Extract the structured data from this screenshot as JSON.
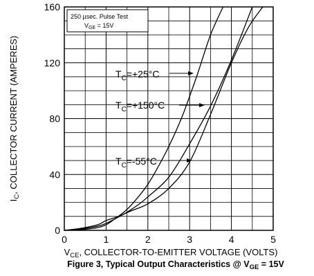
{
  "chart_data": {
    "type": "line",
    "title": "Figure 3, Typical Output Characteristics @ V",
    "title_subscript": "GE",
    "title_suffix": " = 15V",
    "xlabel": "V",
    "xlabel_subscript": "CE",
    "xlabel_suffix": ", COLLECTOR-TO-EMITTER VOLTAGE (VOLTS)",
    "ylabel": "I",
    "ylabel_subscript": "C",
    "ylabel_suffix": ", COLLECTOR CURRENT (AMPERES)",
    "xlim": [
      0,
      5
    ],
    "ylim": [
      0,
      160
    ],
    "x_ticks": [
      "0",
      "1",
      "2",
      "3",
      "4",
      "5"
    ],
    "y_ticks": [
      "0",
      "40",
      "80",
      "120",
      "160"
    ],
    "x_ticks_values": [
      0,
      1,
      2,
      3,
      4,
      5
    ],
    "y_ticks_values": [
      0,
      40,
      80,
      120,
      160
    ],
    "grid": true,
    "inset_box": {
      "line1": "250 µsec. Pulse Test",
      "line2_prefix": "V",
      "line2_subscript": "GE",
      "line2_suffix": " = 15V"
    },
    "series": [
      {
        "name": "T_C=+25°C",
        "x": [
          0,
          0.4,
          0.8,
          1.0,
          1.2,
          1.5,
          1.8,
          2.0,
          2.2,
          2.5,
          2.8,
          3.0,
          3.2,
          3.5,
          3.8
        ],
        "y": [
          0,
          0.5,
          2,
          4,
          8,
          15,
          25,
          33,
          43,
          60,
          80,
          96,
          113,
          140,
          160
        ]
      },
      {
        "name": "T_C=+150°C",
        "x": [
          0,
          0.4,
          0.8,
          1.0,
          1.2,
          1.5,
          1.8,
          2.0,
          2.5,
          3.0,
          3.5,
          4.0,
          4.5
        ],
        "y": [
          0,
          1,
          3,
          5,
          8,
          13,
          19,
          24,
          38,
          62,
          89,
          122,
          160
        ]
      },
      {
        "name": "T_C=-55°C",
        "x": [
          0,
          0.4,
          0.8,
          1.0,
          1.3,
          1.6,
          2.0,
          2.5,
          3.0,
          3.5,
          4.0,
          4.4,
          4.75
        ],
        "y": [
          0,
          1.5,
          4,
          7,
          10,
          14,
          19,
          30,
          49,
          83,
          120,
          145,
          160
        ]
      }
    ],
    "annotations": [
      {
        "prefix": "T",
        "sub": "C",
        "suffix": "=+25°C"
      },
      {
        "prefix": "T",
        "sub": "C",
        "suffix": "=+150°C"
      },
      {
        "prefix": "T",
        "sub": "C",
        "suffix": "=-55°C"
      }
    ]
  }
}
